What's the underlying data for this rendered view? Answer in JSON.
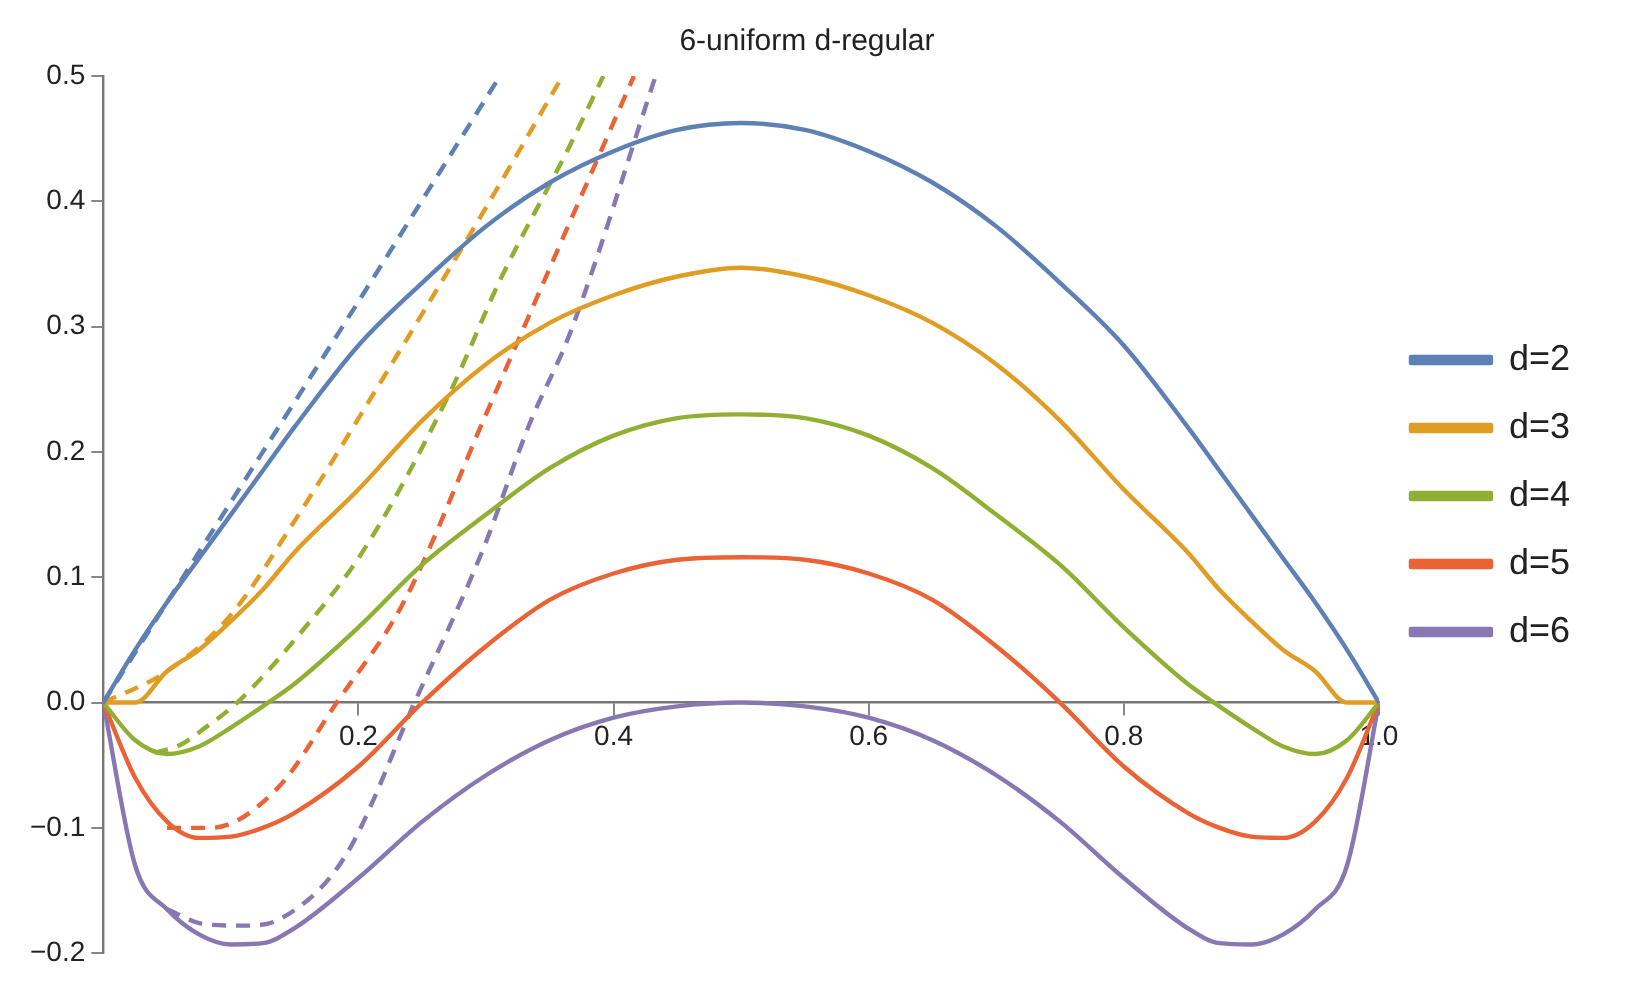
{
  "chart_data": {
    "type": "line",
    "title": "6-uniform d-regular",
    "x": [
      0,
      0.025,
      0.05,
      0.075,
      0.1,
      0.125,
      0.15,
      0.2,
      0.25,
      0.3,
      0.35,
      0.4,
      0.45,
      0.5,
      0.55,
      0.6,
      0.65,
      0.7,
      0.75,
      0.8,
      0.85,
      0.875,
      0.9,
      0.925,
      0.95,
      0.975,
      1
    ],
    "series": [
      {
        "name": "d=2",
        "color": "#5e81b5",
        "values": [
          0,
          0.042,
          0.08,
          0.115,
          0.15,
          0.185,
          0.22,
          0.285,
          0.335,
          0.38,
          0.415,
          0.44,
          0.457,
          0.4625,
          0.457,
          0.44,
          0.415,
          0.38,
          0.335,
          0.285,
          0.22,
          0.185,
          0.15,
          0.115,
          0.08,
          0.042,
          0
        ]
      },
      {
        "name": "d=3",
        "color": "#e19c24",
        "values": [
          0,
          0.0,
          0.025,
          0.042,
          0.065,
          0.09,
          0.12,
          0.17,
          0.225,
          0.27,
          0.303,
          0.325,
          0.34,
          0.347,
          0.34,
          0.325,
          0.303,
          0.27,
          0.225,
          0.17,
          0.12,
          0.09,
          0.065,
          0.042,
          0.025,
          0.0,
          0
        ]
      },
      {
        "name": "d=4",
        "color": "#8fb032",
        "values": [
          0,
          -0.03,
          -0.041,
          -0.035,
          -0.02,
          -0.003,
          0.015,
          0.06,
          0.11,
          0.15,
          0.187,
          0.213,
          0.227,
          0.23,
          0.227,
          0.213,
          0.187,
          0.15,
          0.11,
          0.06,
          0.015,
          -0.003,
          -0.02,
          -0.035,
          -0.041,
          -0.03,
          0
        ]
      },
      {
        "name": "d=5",
        "color": "#eb6235",
        "values": [
          0,
          -0.06,
          -0.095,
          -0.108,
          -0.107,
          -0.1,
          -0.088,
          -0.051,
          0,
          0.045,
          0.082,
          0.103,
          0.114,
          0.116,
          0.114,
          0.103,
          0.082,
          0.045,
          0,
          -0.051,
          -0.088,
          -0.1,
          -0.107,
          -0.108,
          -0.095,
          -0.06,
          0
        ]
      },
      {
        "name": "d=6",
        "color": "#8778b3",
        "values": [
          0,
          -0.13,
          -0.165,
          -0.185,
          -0.193,
          -0.192,
          -0.18,
          -0.14,
          -0.095,
          -0.058,
          -0.03,
          -0.012,
          -0.003,
          0,
          -0.003,
          -0.012,
          -0.03,
          -0.058,
          -0.095,
          -0.14,
          -0.18,
          -0.192,
          -0.193,
          -0.185,
          -0.165,
          -0.13,
          0
        ]
      },
      {
        "color": "#5e81b5",
        "line_style": "dashed",
        "x": [
          0,
          0.1,
          0.2,
          0.311
        ],
        "values": [
          0,
          0.16,
          0.32,
          0.5
        ]
      },
      {
        "color": "#e19c24",
        "line_style": "dashed",
        "x": [
          0,
          0.05,
          0.1,
          0.15,
          0.22,
          0.3,
          0.36
        ],
        "values": [
          0,
          0.025,
          0.07,
          0.145,
          0.26,
          0.395,
          0.5
        ]
      },
      {
        "color": "#8fb032",
        "line_style": "dashed",
        "x": [
          0.04,
          0.06,
          0.08,
          0.105,
          0.15,
          0.205,
          0.272,
          0.311,
          0.366,
          0.392
        ],
        "values": [
          -0.04,
          -0.034,
          -0.02,
          0,
          0.05,
          0.123,
          0.248,
          0.337,
          0.445,
          0.5
        ]
      },
      {
        "color": "#eb6235",
        "line_style": "dashed",
        "x": [
          0.05,
          0.084,
          0.136,
          0.183,
          0.236,
          0.3,
          0.366,
          0.416
        ],
        "values": [
          -0.1,
          -0.1,
          -0.069,
          0,
          0.081,
          0.23,
          0.384,
          0.5
        ]
      },
      {
        "color": "#8778b3",
        "line_style": "dashed",
        "x": [
          0.05,
          0.08,
          0.11,
          0.14,
          0.19,
          0.244,
          0.298,
          0.334,
          0.366,
          0.433
        ],
        "values": [
          -0.165,
          -0.177,
          -0.178,
          -0.172,
          -0.122,
          0,
          0.123,
          0.222,
          0.295,
          0.5
        ]
      }
    ],
    "xlim": [
      0,
      1
    ],
    "xticks": [
      0.2,
      0.4,
      0.6,
      0.8,
      {
        "value": 1,
        "label": "1.0"
      }
    ],
    "ylim": [
      -0.2,
      0.5
    ],
    "yticks": [
      {
        "value": -0.2,
        "label": "−0.2"
      },
      {
        "value": -0.1,
        "label": "−0.1"
      },
      {
        "value": 0,
        "label": "0.0"
      },
      0.1,
      0.2,
      0.3,
      0.4,
      0.5
    ],
    "legend": "right",
    "line_style": "solid",
    "marker": "none"
  }
}
